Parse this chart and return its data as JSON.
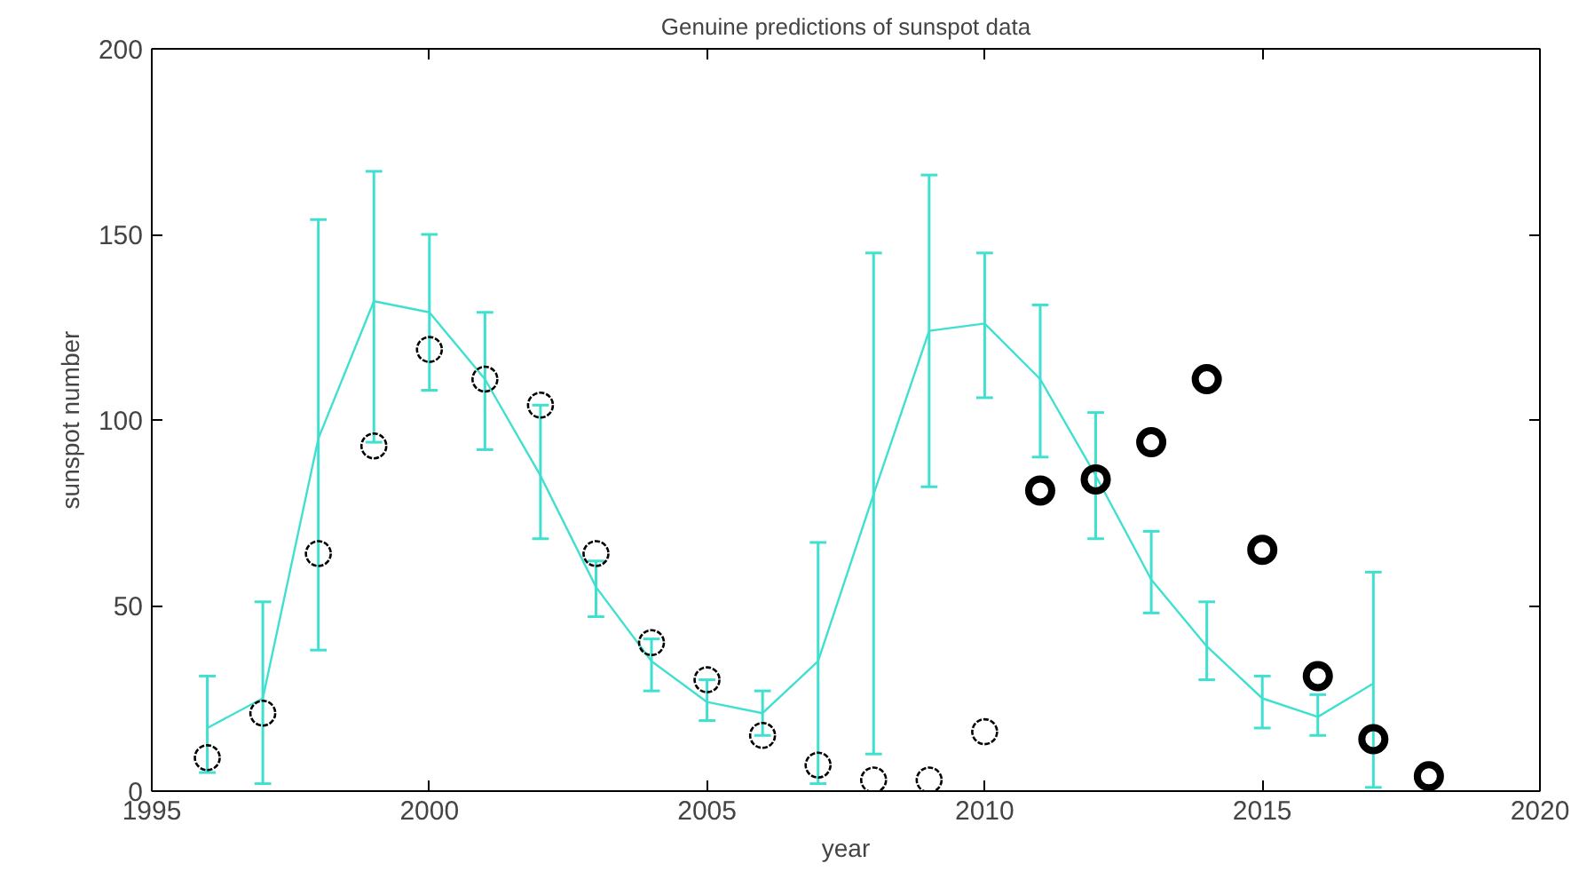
{
  "chart_data": {
    "type": "line",
    "title": "Genuine predictions of sunspot data",
    "xlabel": "year",
    "ylabel": "sunspot number",
    "xlim": [
      1995,
      2020
    ],
    "xticks": [
      1995,
      2000,
      2005,
      2010,
      2015,
      2020
    ],
    "ylim": [
      0,
      200
    ],
    "yticks": [
      0,
      50,
      100,
      150,
      200
    ],
    "grid": false,
    "series": [
      {
        "color": "#40e0d0",
        "marker": "none",
        "x": [
          1996,
          1997,
          1998,
          1999,
          2000,
          2001,
          2002,
          2003,
          2004,
          2005,
          2006,
          2007,
          2008,
          2009,
          2010,
          2011,
          2012,
          2013,
          2014,
          2015,
          2016,
          2017
        ],
        "values": [
          17,
          25,
          95,
          132,
          129,
          111,
          85,
          55,
          35,
          24,
          21,
          35,
          80,
          124,
          126,
          111,
          85,
          57,
          39,
          25,
          20,
          29
        ],
        "errors": [
          [
            5,
            31
          ],
          [
            2,
            51
          ],
          [
            38,
            154
          ],
          [
            94,
            167
          ],
          [
            108,
            150
          ],
          [
            92,
            129
          ],
          [
            68,
            104
          ],
          [
            47,
            62
          ],
          [
            27,
            41
          ],
          [
            19,
            30
          ],
          [
            15,
            27
          ],
          [
            2,
            67
          ],
          [
            10,
            145
          ],
          [
            82,
            166
          ],
          [
            106,
            145
          ],
          [
            90,
            131
          ],
          [
            68,
            102
          ],
          [
            48,
            70
          ],
          [
            30,
            51
          ],
          [
            17,
            31
          ],
          [
            15,
            26
          ],
          [
            1,
            59
          ]
        ]
      },
      {
        "type": "scatter",
        "color": "#000000",
        "marker": "circle",
        "x": [
          1996,
          1997,
          1998,
          1999,
          2000,
          2001,
          2002,
          2003,
          2004,
          2005,
          2006,
          2007,
          2008,
          2009,
          2010
        ],
        "values": [
          9,
          21,
          64,
          93,
          119,
          111,
          104,
          64,
          40,
          30,
          15,
          7,
          3,
          3,
          16
        ]
      },
      {
        "type": "scatter",
        "color": "#000000",
        "marker": "circle",
        "x": [
          2011,
          2012,
          2013,
          2014,
          2015,
          2016,
          2017,
          2018
        ],
        "values": [
          81,
          84,
          94,
          111,
          65,
          31,
          14,
          4
        ]
      }
    ]
  }
}
